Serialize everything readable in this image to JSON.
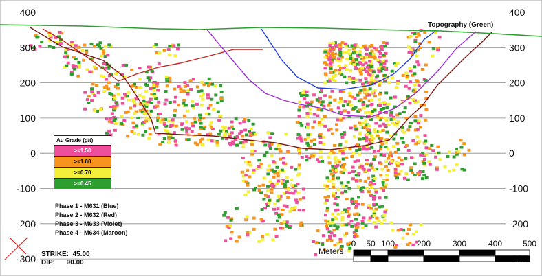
{
  "elevation_labels": [
    "400",
    "300",
    "200",
    "100",
    "0",
    "-100",
    "-200",
    "-300"
  ],
  "topography_label": "Topography (Green)",
  "legend": {
    "title": "Au Grade (g/t)",
    "items": [
      {
        "label": ">=1.50",
        "color": "#ee4f9c"
      },
      {
        "label": ">=1.00",
        "color": "#f7941d"
      },
      {
        "label": ">=0.70",
        "color": "#f3ef3a"
      },
      {
        "label": ">=0.45",
        "color": "#2e9e31"
      }
    ]
  },
  "phases": [
    {
      "label": "Phase 1 - M631 (Blue)",
      "color": "#1f3fd6"
    },
    {
      "label": "Phase 2 - M632 (Red)",
      "color": "#c2241b"
    },
    {
      "label": "Phase 3 - M633 (Violet)",
      "color": "#9c2fd3"
    },
    {
      "label": "Phase 4 - M634 (Maroon)",
      "color": "#7a1512"
    }
  ],
  "strike": {
    "label": "STRIKE:",
    "value": "45.00"
  },
  "dip": {
    "label": "DIP:",
    "value": "90.00"
  },
  "scale_bar": {
    "title": "Meters",
    "ticks": [
      "0",
      "50",
      "100",
      "200",
      "300",
      "400",
      "500"
    ]
  },
  "colors": {
    "topography": "#2e9e31",
    "gridline": "#8a8a8a"
  }
}
